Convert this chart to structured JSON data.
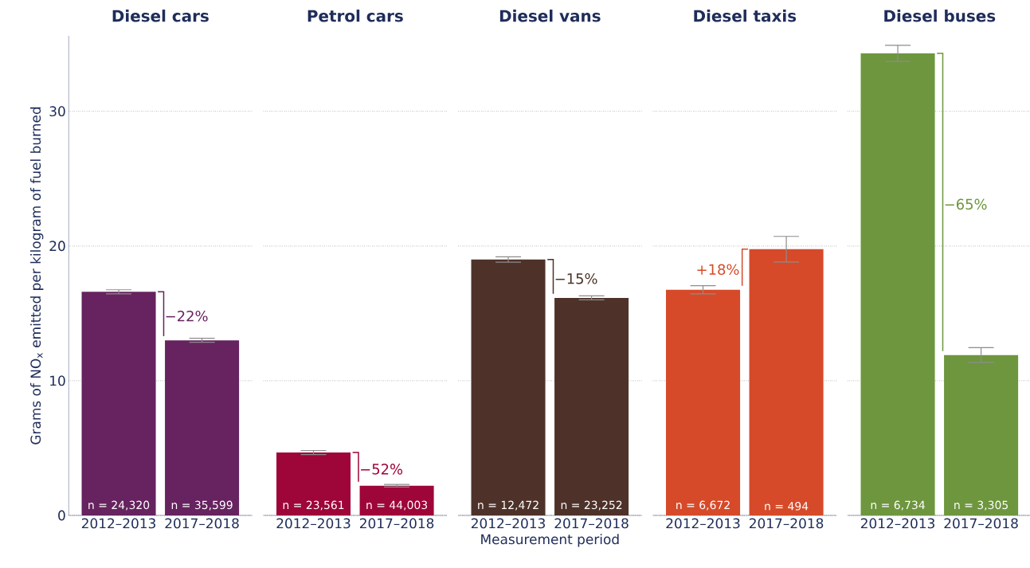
{
  "chart_data": [
    {
      "type": "bar",
      "title": "Diesel cars",
      "ylabel": "Grams of NO$_{x}$ emitted per kilogram of fuel burned",
      "categories": [
        "2012–2013",
        "2017–2018"
      ],
      "values": [
        16.6,
        13.0
      ],
      "errors": [
        0.15,
        0.15
      ],
      "colors": [
        "#66235f",
        "#66235f"
      ],
      "ylim": [
        0,
        35.6
      ],
      "yticks": [
        0,
        10,
        20,
        30
      ],
      "grid": "y",
      "annotations": [
        "−22%",
        "n = 24,320",
        "n = 35,599"
      ]
    },
    {
      "type": "bar",
      "title": "Petrol cars",
      "categories": [
        "2012–2013",
        "2017–2018"
      ],
      "values": [
        4.67,
        2.2
      ],
      "errors": [
        0.15,
        0.1
      ],
      "colors": [
        "#9e0539",
        "#9e0539"
      ],
      "yticks": [
        0,
        10,
        20,
        30
      ],
      "grid": "y",
      "tick_labels": "x",
      "annotations": [
        "−52%",
        "n = 23,561",
        "n = 44,003"
      ]
    },
    {
      "type": "bar",
      "title": "Diesel vans",
      "xlabel": "Measurement period",
      "categories": [
        "2012–2013",
        "2017–2018"
      ],
      "values": [
        19.0,
        16.15
      ],
      "errors": [
        0.2,
        0.15
      ],
      "colors": [
        "#4e3229",
        "#4e3229"
      ],
      "yticks": [
        0,
        10,
        20,
        30
      ],
      "grid": "y",
      "tick_labels": "x",
      "annotations": [
        "−15%",
        "n = 12,472",
        "n = 23,252"
      ]
    },
    {
      "type": "bar",
      "title": "Diesel taxis",
      "categories": [
        "2012–2013",
        "2017–2018"
      ],
      "values": [
        16.75,
        19.76
      ],
      "errors": [
        0.3,
        0.95
      ],
      "colors": [
        "#d64a29",
        "#d64a29"
      ],
      "yticks": [
        0,
        10,
        20,
        30
      ],
      "grid": "y",
      "tick_labels": "x",
      "annotations": [
        "+18%",
        "n = 6,672",
        "n = 494"
      ]
    },
    {
      "type": "bar",
      "title": "Diesel buses",
      "categories": [
        "2012–2013",
        "2017–2018"
      ],
      "values": [
        34.3,
        11.9
      ],
      "errors": [
        0.6,
        0.55
      ],
      "colors": [
        "#6e963e",
        "#6e963e"
      ],
      "yticks": [
        0,
        10,
        20,
        30
      ],
      "grid": "y",
      "tick_labels": "x",
      "annotations": [
        "−65%",
        "n = 6,734",
        "n = 3,305"
      ]
    }
  ]
}
